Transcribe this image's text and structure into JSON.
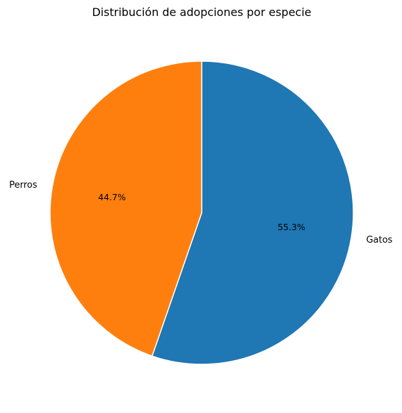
{
  "chart_data": {
    "type": "pie",
    "title": "Distribución de adopciones por especie",
    "categories": [
      "Gatos",
      "Perros"
    ],
    "values": [
      55.3,
      44.7
    ],
    "percent_labels": [
      "55.3%",
      "44.7%"
    ],
    "colors": [
      "#1f77b4",
      "#ff7f0e"
    ],
    "start_angle_deg": 90,
    "direction": "clockwise",
    "legend": "none"
  }
}
